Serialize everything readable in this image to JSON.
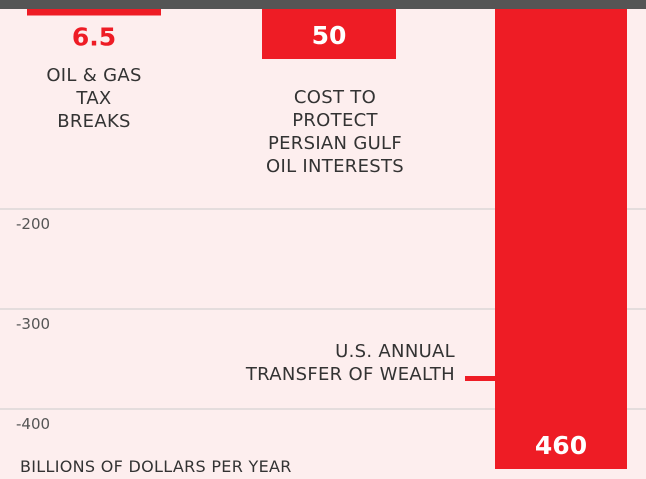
{
  "chart_data": {
    "type": "bar",
    "categories": [
      "OIL & GAS\nTAX\nBREAKS",
      "COST TO\nPROTECT\nPERSIAN GULF\nOIL INTERESTS",
      "U.S. ANNUAL\nTRANSFER OF WEALTH"
    ],
    "values": [
      -6.5,
      -50,
      -460
    ],
    "value_labels": [
      "6.5",
      "50",
      "460"
    ],
    "color": "#ee1c25",
    "ylim": [
      0,
      -470
    ],
    "yticks": [
      -200,
      -300,
      -400
    ],
    "grid": true,
    "ylabel": "BILLIONS OF DOLLARS PER YEAR"
  }
}
